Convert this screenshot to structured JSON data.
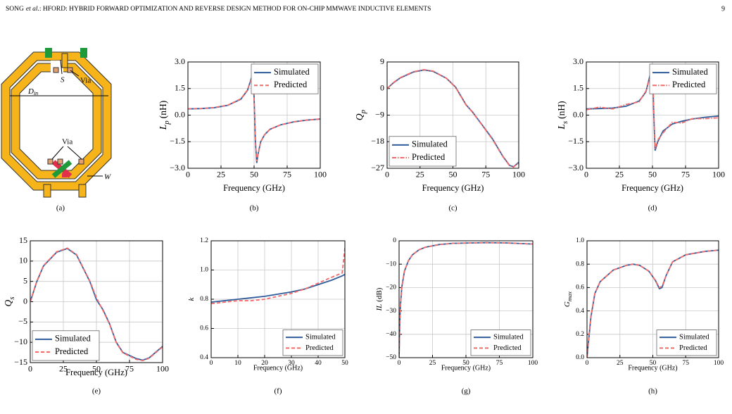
{
  "header": {
    "author": "SONG",
    "etal": "et al.",
    "title": ": HFORD: HYBRID FORWARD OPTIMIZATION AND REVERSE DESIGN METHOD FOR ON-CHIP MMWAVE INDUCTIVE ELEMENTS",
    "page": "9"
  },
  "figure_a": {
    "labels": {
      "s": "S",
      "via_top": "Via",
      "d": "D",
      "d_sub": "in",
      "via_bottom": "Via",
      "w": "W"
    },
    "caption": "(a)"
  },
  "chart_data": [
    {
      "type": "line",
      "caption": "(b)",
      "xlabel": "Frequency (GHz)",
      "ylabel": {
        "symbol": "L",
        "sub": "p",
        "unit": "(nH)"
      },
      "grid": true,
      "legend": "upper right",
      "x": [
        0,
        10,
        20,
        30,
        40,
        45,
        48,
        49,
        50,
        51,
        52,
        53,
        55,
        58,
        62,
        70,
        80,
        90,
        100
      ],
      "xlim": [
        0,
        100
      ],
      "xticks": [
        0,
        25,
        50,
        75,
        100
      ],
      "ylim": [
        -3,
        3
      ],
      "yticks": [
        {
          "value": -3,
          "label": "−3.0"
        },
        {
          "value": -1.5,
          "label": "−1.5"
        },
        {
          "value": 0,
          "label": "0.0"
        },
        {
          "value": 1.5,
          "label": "1.5"
        },
        {
          "value": 3,
          "label": "3.0"
        }
      ],
      "series": [
        {
          "name": "Simulated",
          "color": "#2f5d9b",
          "linestyle": "solid",
          "values": [
            0.35,
            0.37,
            0.42,
            0.55,
            0.9,
            1.4,
            2.1,
            2.4,
            1.0,
            -1.5,
            -2.7,
            -2.2,
            -1.5,
            -1.1,
            -0.8,
            -0.55,
            -0.38,
            -0.28,
            -0.22
          ]
        },
        {
          "name": "Predicted",
          "color": "#f26b6b",
          "linestyle": "dashed",
          "values": [
            0.36,
            0.37,
            0.43,
            0.56,
            0.92,
            1.42,
            2.05,
            2.35,
            0.9,
            -1.4,
            -2.6,
            -2.2,
            -1.5,
            -1.1,
            -0.8,
            -0.55,
            -0.38,
            -0.28,
            -0.22
          ]
        }
      ]
    },
    {
      "type": "line",
      "caption": "(c)",
      "xlabel": "Frequency (GHz)",
      "ylabel": {
        "symbol": "Q",
        "sub": "p"
      },
      "grid": true,
      "legend": "lower left",
      "x": [
        0,
        5,
        10,
        20,
        28,
        35,
        45,
        52,
        56,
        60,
        65,
        70,
        80,
        88,
        93,
        96,
        100
      ],
      "xlim": [
        0,
        100
      ],
      "xticks": [
        0,
        25,
        50,
        75,
        100
      ],
      "ylim": [
        -27,
        9
      ],
      "yticks": [
        {
          "value": -27,
          "label": "−27"
        },
        {
          "value": -18,
          "label": "−18"
        },
        {
          "value": -9,
          "label": "−9"
        },
        0,
        9
      ],
      "series": [
        {
          "name": "Simulated",
          "color": "#2f5d9b",
          "linestyle": "solid",
          "values": [
            0,
            2,
            3.6,
            5.6,
            6.3,
            5.8,
            3.5,
            0.5,
            -2.5,
            -5.5,
            -8,
            -11,
            -17,
            -23,
            -26,
            -26.5,
            -25
          ]
        },
        {
          "name": "Predicted",
          "color": "#f26b6b",
          "linestyle": "dashdot",
          "values": [
            0,
            2.1,
            3.7,
            5.7,
            6.4,
            5.9,
            3.5,
            0.4,
            -2.6,
            -5.6,
            -8.1,
            -11.1,
            -17.2,
            -23.1,
            -26.1,
            -26.6,
            -25.1
          ]
        }
      ]
    },
    {
      "type": "line",
      "caption": "(d)",
      "xlabel": "Frequency (GHz)",
      "ylabel": {
        "symbol": "L",
        "sub": "s",
        "unit": "(nH)"
      },
      "grid": true,
      "legend": "upper right",
      "x": [
        0,
        10,
        20,
        30,
        40,
        45,
        48,
        50,
        51,
        52,
        54,
        58,
        65,
        72,
        80,
        90,
        100
      ],
      "xlim": [
        0,
        100
      ],
      "xticks": [
        0,
        25,
        50,
        75,
        100
      ],
      "ylim": [
        -3,
        3
      ],
      "yticks": [
        {
          "value": -3,
          "label": "−3.0"
        },
        {
          "value": -1.5,
          "label": "−1.5"
        },
        {
          "value": 0,
          "label": "0.0"
        },
        {
          "value": 1.5,
          "label": "1.5"
        },
        {
          "value": 3,
          "label": "3.0"
        }
      ],
      "series": [
        {
          "name": "Simulated",
          "color": "#2f5d9b",
          "linestyle": "solid",
          "values": [
            0.35,
            0.37,
            0.4,
            0.5,
            0.8,
            1.3,
            2.2,
            2.9,
            0,
            -2.0,
            -1.5,
            -0.9,
            -0.5,
            -0.35,
            -0.22,
            -0.12,
            -0.05
          ]
        },
        {
          "name": "Predicted",
          "color": "#f26b6b",
          "linestyle": "dashdot",
          "values": [
            0.3,
            0.45,
            0.35,
            0.6,
            0.75,
            1.35,
            2.1,
            2.8,
            0.2,
            -1.9,
            -1.4,
            -1.0,
            -0.4,
            -0.45,
            -0.2,
            -0.2,
            -0.15
          ]
        }
      ]
    },
    {
      "type": "line",
      "caption": "(e)",
      "xlabel": "Frequency (GHz)",
      "ylabel": {
        "symbol": "Q",
        "sub": "s"
      },
      "grid": true,
      "legend": "lower left",
      "x": [
        0,
        5,
        10,
        20,
        28,
        35,
        45,
        50,
        55,
        60,
        65,
        70,
        80,
        85,
        90,
        100
      ],
      "xlim": [
        0,
        100
      ],
      "xticks": [
        0,
        25,
        50,
        75,
        100
      ],
      "ylim": [
        -15,
        15
      ],
      "yticks": [
        {
          "value": -15,
          "label": "−15"
        },
        {
          "value": -10,
          "label": "−10"
        },
        {
          "value": -5,
          "label": "−5"
        },
        0,
        5,
        10,
        15
      ],
      "series": [
        {
          "name": "Simulated",
          "color": "#2f5d9b",
          "linestyle": "solid",
          "values": [
            0,
            5,
            8.8,
            12.2,
            13.1,
            11.5,
            5,
            0.5,
            -2,
            -5.5,
            -10,
            -12.5,
            -14,
            -14.4,
            -13.8,
            -11
          ]
        },
        {
          "name": "Predicted",
          "color": "#f26b6b",
          "linestyle": "dashed",
          "values": [
            0,
            5.1,
            8.9,
            12.3,
            13.2,
            11.6,
            5.1,
            1,
            -2.2,
            -5.6,
            -10.1,
            -12.6,
            -14.2,
            -14.5,
            -13.9,
            -11.1
          ]
        }
      ]
    },
    {
      "type": "line",
      "caption": "(f)",
      "xlabel": "Frequency (GHz)",
      "ylabel": {
        "symbol": "k"
      },
      "grid": true,
      "legend": "lower right",
      "x": [
        0,
        5,
        10,
        15,
        20,
        25,
        30,
        35,
        40,
        45,
        49,
        50
      ],
      "xlim": [
        0,
        50
      ],
      "xticks": [
        0,
        10,
        20,
        30,
        40,
        50
      ],
      "ylim": [
        0.4,
        1.2
      ],
      "yticks": [
        0.4,
        0.6,
        0.8,
        {
          "value": 1.0,
          "label": "1.0"
        },
        1.2
      ],
      "series": [
        {
          "name": "Simulated",
          "color": "#2f5d9b",
          "linestyle": "solid",
          "values": [
            0.78,
            0.79,
            0.8,
            0.81,
            0.82,
            0.835,
            0.85,
            0.87,
            0.9,
            0.93,
            0.96,
            0.97
          ]
        },
        {
          "name": "Predicted",
          "color": "#f26b6b",
          "linestyle": "dashed",
          "values": [
            0.77,
            0.78,
            0.79,
            0.79,
            0.8,
            0.82,
            0.84,
            0.87,
            0.91,
            0.95,
            0.98,
            1.15
          ]
        }
      ]
    },
    {
      "type": "line",
      "caption": "(g)",
      "xlabel": "Frequency (GHz)",
      "ylabel": {
        "symbol": "IL",
        "unit": "(dB)"
      },
      "grid": true,
      "legend": "lower right",
      "x": [
        0,
        0.5,
        1,
        2,
        4,
        7,
        10,
        15,
        20,
        30,
        40,
        55,
        65,
        80,
        100
      ],
      "xlim": [
        0,
        100
      ],
      "xticks": [
        0,
        25,
        50,
        75,
        100
      ],
      "ylim": [
        -50,
        0
      ],
      "yticks": [
        {
          "value": -50,
          "label": "−50"
        },
        {
          "value": -40,
          "label": "−40"
        },
        {
          "value": -30,
          "label": "−30"
        },
        {
          "value": -20,
          "label": "−20"
        },
        {
          "value": -10,
          "label": "−10"
        },
        0
      ],
      "series": [
        {
          "name": "Simulated",
          "color": "#2f5d9b",
          "linestyle": "solid",
          "values": [
            -50,
            -35,
            -28,
            -20,
            -13,
            -8.5,
            -6,
            -3.8,
            -2.7,
            -1.6,
            -1.1,
            -0.9,
            -0.8,
            -0.9,
            -1.4
          ]
        },
        {
          "name": "Predicted",
          "color": "#f26b6b",
          "linestyle": "dashed",
          "values": [
            -50,
            -35,
            -28,
            -20,
            -13,
            -8.5,
            -6,
            -3.8,
            -2.7,
            -1.6,
            -1.1,
            -0.9,
            -0.8,
            -0.9,
            -1.4
          ]
        }
      ]
    },
    {
      "type": "line",
      "caption": "(h)",
      "xlabel": "Frequency (GHz)",
      "ylabel": {
        "symbol": "G",
        "sub": "max"
      },
      "grid": true,
      "legend": "lower right",
      "x": [
        0,
        1,
        3,
        6,
        10,
        20,
        30,
        35,
        40,
        47,
        52,
        55,
        57,
        60,
        65,
        75,
        90,
        100
      ],
      "xlim": [
        0,
        100
      ],
      "xticks": [
        0,
        25,
        50,
        75,
        100
      ],
      "ylim": [
        0,
        1
      ],
      "yticks": [
        {
          "value": 0,
          "label": "0.0"
        },
        0.2,
        0.4,
        0.6,
        0.8,
        {
          "value": 1,
          "label": "1.0"
        }
      ],
      "series": [
        {
          "name": "Simulated",
          "color": "#2f5d9b",
          "linestyle": "solid",
          "values": [
            0,
            0.12,
            0.35,
            0.55,
            0.65,
            0.75,
            0.79,
            0.8,
            0.79,
            0.74,
            0.66,
            0.59,
            0.6,
            0.7,
            0.82,
            0.88,
            0.91,
            0.92
          ]
        },
        {
          "name": "Predicted",
          "color": "#f26b6b",
          "linestyle": "dashed",
          "values": [
            0,
            0.13,
            0.36,
            0.55,
            0.65,
            0.75,
            0.79,
            0.8,
            0.79,
            0.74,
            0.66,
            0.6,
            0.61,
            0.7,
            0.82,
            0.88,
            0.91,
            0.92
          ]
        }
      ]
    }
  ]
}
